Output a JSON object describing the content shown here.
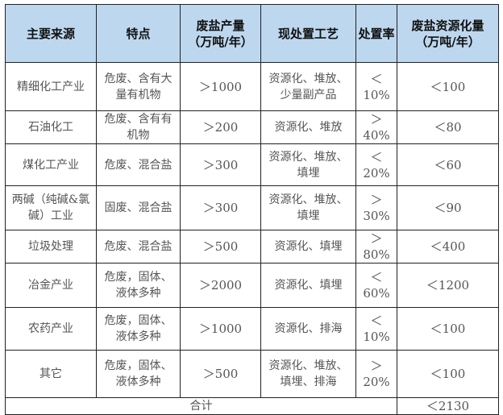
{
  "table": {
    "headers": [
      "主要来源",
      "特点",
      "废盐产量\n（万吨/年）",
      "现处置工艺",
      "处置率",
      "废盐资源化量\n（万吨/年）"
    ],
    "rows": [
      [
        "精细化工产业",
        "危废、含有大\n量有机物",
        "＞1000",
        "资源化、堆放、\n少量副产品",
        "＜10%",
        "＜100"
      ],
      [
        "石油化工",
        "危废、含有有\n机物",
        "＞200",
        "资源化、堆放",
        "＞40%",
        "＜80"
      ],
      [
        "煤化工产业",
        "危废、混合盐",
        "＞300",
        "资源化、堆放、\n填埋",
        "＜20%",
        "＜60"
      ],
      [
        "两碱（纯碱&氯\n碱）工业",
        "固废、混合盐",
        "＞300",
        "资源化、堆放、\n填埋",
        "＞30%",
        "＜90"
      ],
      [
        "垃圾处理",
        "危废、混合盐",
        "＞500",
        "资源化、填埋",
        "＞80%",
        "＜400"
      ],
      [
        "冶金产业",
        "危废，固体、\n液体多种",
        "＞2000",
        "资源化、填埋",
        "＜60%",
        "＜1200"
      ],
      [
        "农药产业",
        "危废，固体、\n液体多种",
        "＞1000",
        "资源化、排海",
        "＜10%",
        "＜100"
      ],
      [
        "其它",
        "危废，固体、\n液体多种",
        "＞500",
        "资源化、堆放、\n填埋、排海",
        "＞20%",
        "＜100"
      ]
    ],
    "total_label": "合计",
    "total_value": "＜2130"
  },
  "colors": {
    "header_bg": "#BDD7EE",
    "border": "#222222",
    "body_text": "#555555"
  }
}
